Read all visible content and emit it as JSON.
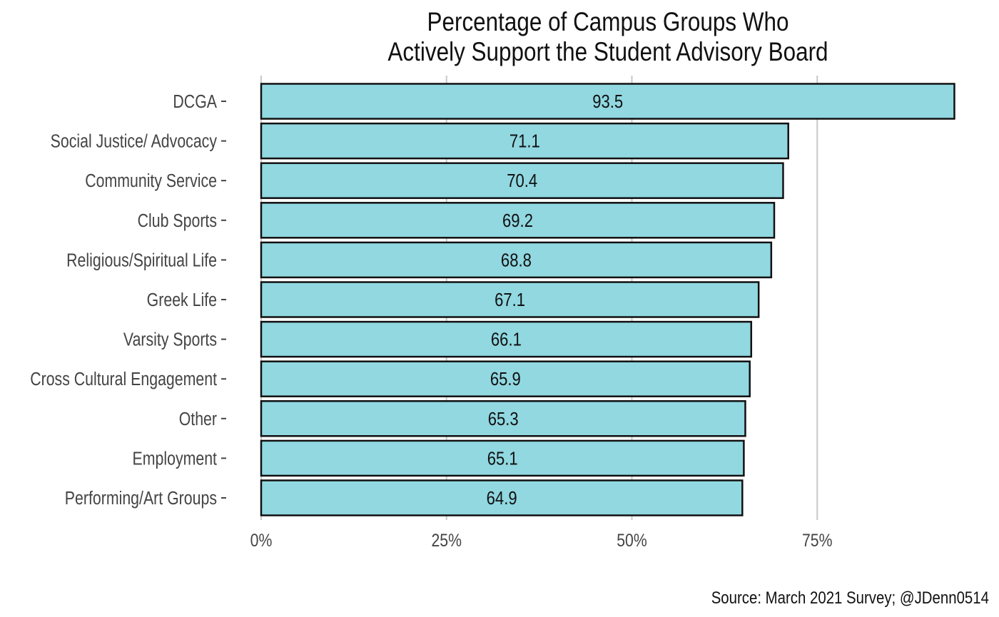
{
  "chart_data": {
    "type": "bar",
    "orientation": "horizontal",
    "title_lines": [
      "Percentage of Campus Groups Who",
      "Actively Support the Student Advisory Board"
    ],
    "categories": [
      "DCGA",
      "Social Justice/ Advocacy",
      "Community Service",
      "Club Sports",
      "Religious/Spiritual Life",
      "Greek Life",
      "Varsity Sports",
      "Cross Cultural Engagement",
      "Other",
      "Employment",
      "Performing/Art Groups"
    ],
    "values": [
      93.5,
      71.1,
      70.4,
      69.2,
      68.8,
      67.1,
      66.1,
      65.9,
      65.3,
      65.1,
      64.9
    ],
    "data_labels": [
      "93.5",
      "71.1",
      "70.4",
      "69.2",
      "68.8",
      "67.1",
      "66.1",
      "65.9",
      "65.3",
      "65.1",
      "64.9"
    ],
    "xticks": [
      0,
      25,
      50,
      75
    ],
    "xtick_labels": [
      "0%",
      "25%",
      "50%",
      "75%"
    ],
    "xlim": [
      0,
      100
    ],
    "grid": "vertical major",
    "bar_color": "#91d8e1",
    "bar_edge_color": "#111111",
    "grid_color": "#c8c8c8",
    "caption": "Source: March 2021 Survey; @JDenn0514"
  }
}
